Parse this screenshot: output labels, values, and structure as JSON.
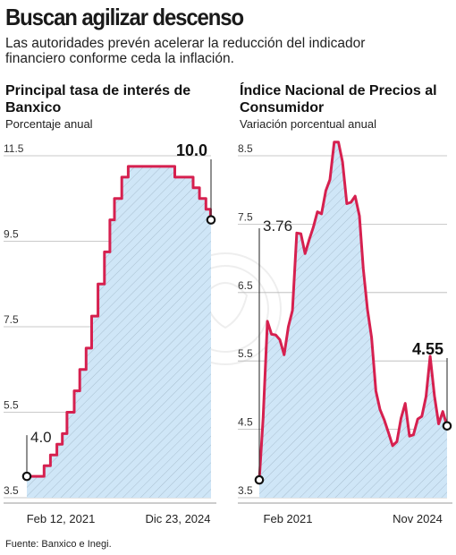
{
  "header": {
    "title": "Buscan agilizar descenso",
    "subtitle": "Las autoridades prevén acelerar la reducción del indicador financiero conforme ceda la inflación."
  },
  "source": "Fuente: Banxico e Inegi.",
  "colors": {
    "line": "#d6204f",
    "fill": "#cfe6f7",
    "hatch": "#9fb5c6",
    "grid": "#b8b8b8"
  },
  "chart_data": [
    {
      "type": "area",
      "title": "Principal tasa de interés de Banxico",
      "ylabel": "Porcentaje anual",
      "ylim": [
        3.5,
        11.5
      ],
      "yticks": [
        "3.5",
        "5.5",
        "7.5",
        "9.5",
        "11.5"
      ],
      "xtick_labels": [
        "Feb 12, 2021",
        "Dic 23, 2024"
      ],
      "step": true,
      "x_range": [
        "2021-02-12",
        "2024-12-23"
      ],
      "x": [
        "2021-02-12",
        "2021-06-24",
        "2021-08-12",
        "2021-09-30",
        "2021-11-11",
        "2021-12-16",
        "2022-02-10",
        "2022-03-24",
        "2022-05-12",
        "2022-06-23",
        "2022-08-11",
        "2022-09-29",
        "2022-11-10",
        "2022-12-15",
        "2023-02-09",
        "2023-03-30",
        "2024-03-21",
        "2024-06-27",
        "2024-08-08",
        "2024-09-26",
        "2024-11-14",
        "2024-12-19",
        "2024-12-23"
      ],
      "values": [
        4.0,
        4.25,
        4.5,
        4.75,
        5.0,
        5.5,
        6.0,
        6.5,
        7.0,
        7.75,
        8.5,
        9.25,
        10.0,
        10.5,
        11.0,
        11.25,
        11.0,
        11.0,
        10.75,
        10.5,
        10.25,
        10.0,
        10.0
      ],
      "annotations": [
        {
          "label": "4.0",
          "x": "2021-02-12",
          "y": 4.0
        },
        {
          "label": "10.0",
          "x": "2024-12-23",
          "y": 10.0
        }
      ]
    },
    {
      "type": "area",
      "title": "Índice Nacional de Precios al Consumidor",
      "ylabel": "Variación porcentual anual",
      "ylim": [
        3.5,
        8.5
      ],
      "yticks": [
        "3.5",
        "4.5",
        "5.5",
        "6.5",
        "7.5",
        "8.5"
      ],
      "xtick_labels": [
        "Feb 2021",
        "Nov 2024"
      ],
      "x_range": [
        "2021-02",
        "2024-11"
      ],
      "x": [
        "2021-02",
        "2021-03",
        "2021-04",
        "2021-05",
        "2021-06",
        "2021-07",
        "2021-08",
        "2021-09",
        "2021-10",
        "2021-11",
        "2021-12",
        "2022-01",
        "2022-02",
        "2022-03",
        "2022-04",
        "2022-05",
        "2022-06",
        "2022-07",
        "2022-08",
        "2022-09",
        "2022-10",
        "2022-11",
        "2022-12",
        "2023-01",
        "2023-02",
        "2023-03",
        "2023-04",
        "2023-05",
        "2023-06",
        "2023-07",
        "2023-08",
        "2023-09",
        "2023-10",
        "2023-11",
        "2023-12",
        "2024-01",
        "2024-02",
        "2024-03",
        "2024-04",
        "2024-05",
        "2024-06",
        "2024-07",
        "2024-08",
        "2024-09",
        "2024-10",
        "2024-11"
      ],
      "values": [
        3.76,
        4.67,
        6.08,
        5.89,
        5.88,
        5.81,
        5.59,
        6.0,
        6.24,
        7.37,
        7.36,
        7.07,
        7.28,
        7.45,
        7.68,
        7.65,
        7.99,
        8.15,
        8.7,
        8.7,
        8.41,
        7.8,
        7.82,
        7.91,
        7.62,
        6.85,
        6.25,
        5.84,
        5.06,
        4.79,
        4.64,
        4.45,
        4.26,
        4.32,
        4.66,
        4.88,
        4.4,
        4.42,
        4.65,
        4.69,
        4.98,
        5.57,
        4.99,
        4.58,
        4.76,
        4.55
      ],
      "annotations": [
        {
          "label": "3.76",
          "x": "2021-02",
          "y": 3.76
        },
        {
          "label": "4.55",
          "x": "2024-11",
          "y": 4.55
        }
      ]
    }
  ]
}
